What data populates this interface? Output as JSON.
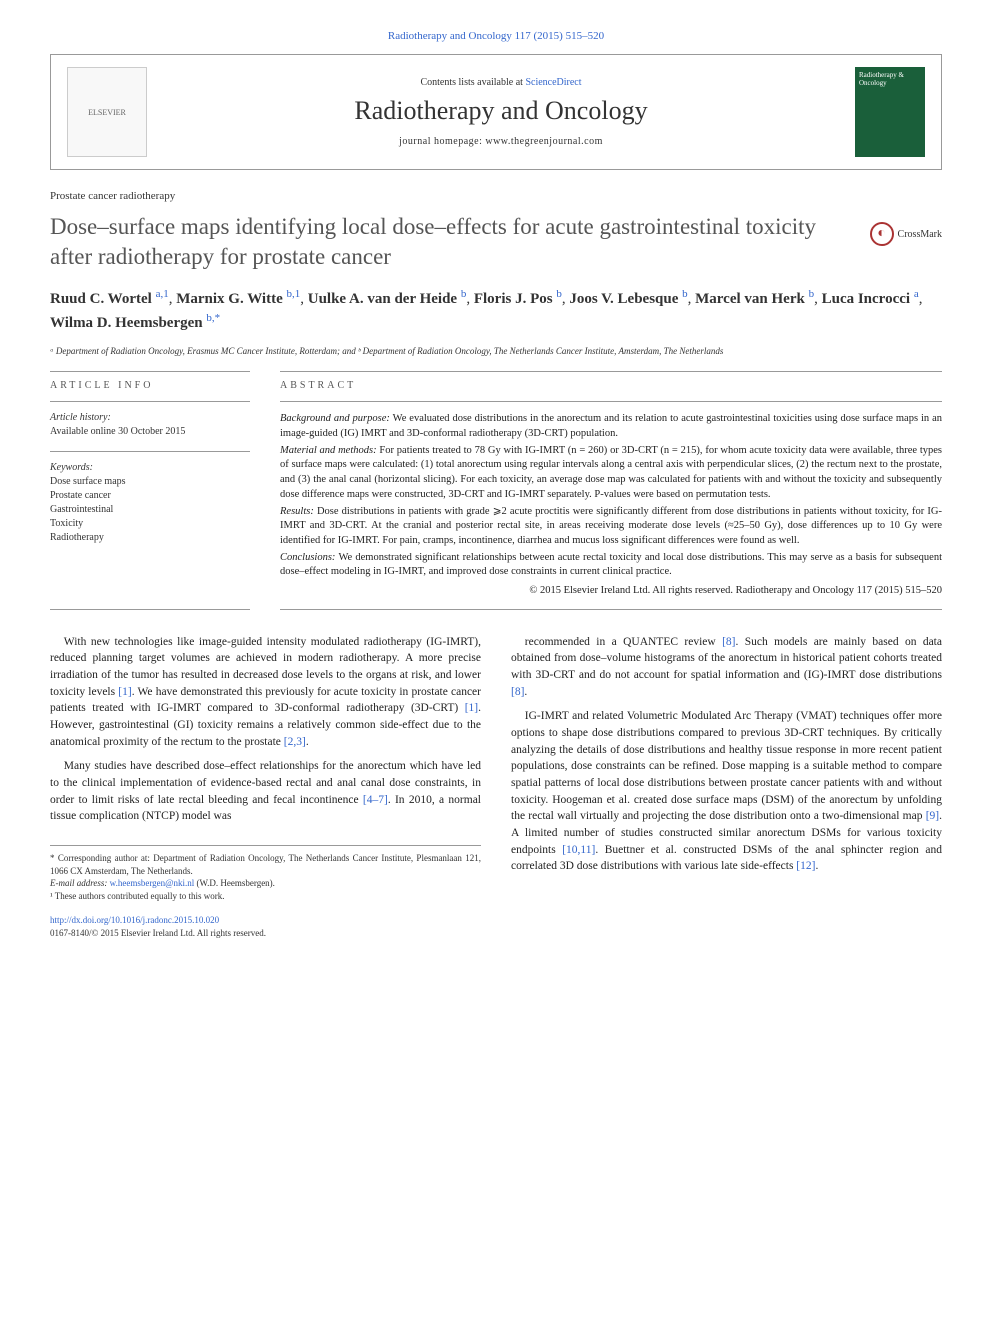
{
  "citation": "Radiotherapy and Oncology 117 (2015) 515–520",
  "journal_box": {
    "contents_prefix": "Contents lists available at ",
    "contents_link": "ScienceDirect",
    "journal_title": "Radiotherapy and Oncology",
    "homepage_prefix": "journal homepage: ",
    "homepage_url": "www.thegreenjournal.com",
    "publisher_mark": "ELSEVIER",
    "cover_text": "Radiotherapy & Oncology"
  },
  "article_type": "Prostate cancer radiotherapy",
  "title": "Dose–surface maps identifying local dose–effects for acute gastrointestinal toxicity after radiotherapy for prostate cancer",
  "crossmark": "CrossMark",
  "authors": [
    {
      "name": "Ruud C. Wortel",
      "aff": "a,1"
    },
    {
      "name": "Marnix G. Witte",
      "aff": "b,1"
    },
    {
      "name": "Uulke A. van der Heide",
      "aff": "b"
    },
    {
      "name": "Floris J. Pos",
      "aff": "b"
    },
    {
      "name": "Joos V. Lebesque",
      "aff": "b"
    },
    {
      "name": "Marcel van Herk",
      "aff": "b"
    },
    {
      "name": "Luca Incrocci",
      "aff": "a"
    },
    {
      "name": "Wilma D. Heemsbergen",
      "aff": "b,*"
    }
  ],
  "affiliations": "ᵃ Department of Radiation Oncology, Erasmus MC Cancer Institute, Rotterdam; and ᵇ Department of Radiation Oncology, The Netherlands Cancer Institute, Amsterdam, The Netherlands",
  "article_info": {
    "heading": "article info",
    "history_label": "Article history:",
    "history_text": "Available online 30 October 2015",
    "keywords_label": "Keywords:",
    "keywords": [
      "Dose surface maps",
      "Prostate cancer",
      "Gastrointestinal",
      "Toxicity",
      "Radiotherapy"
    ]
  },
  "abstract": {
    "heading": "abstract",
    "background_label": "Background and purpose:",
    "background": "We evaluated dose distributions in the anorectum and its relation to acute gastrointestinal toxicities using dose surface maps in an image-guided (IG) IMRT and 3D-conformal radiotherapy (3D-CRT) population.",
    "methods_label": "Material and methods:",
    "methods": "For patients treated to 78 Gy with IG-IMRT (n = 260) or 3D-CRT (n = 215), for whom acute toxicity data were available, three types of surface maps were calculated: (1) total anorectum using regular intervals along a central axis with perpendicular slices, (2) the rectum next to the prostate, and (3) the anal canal (horizontal slicing). For each toxicity, an average dose map was calculated for patients with and without the toxicity and subsequently dose difference maps were constructed, 3D-CRT and IG-IMRT separately. P-values were based on permutation tests.",
    "results_label": "Results:",
    "results": "Dose distributions in patients with grade ⩾2 acute proctitis were significantly different from dose distributions in patients without toxicity, for IG-IMRT and 3D-CRT. At the cranial and posterior rectal site, in areas receiving moderate dose levels (≈25–50 Gy), dose differences up to 10 Gy were identified for IG-IMRT. For pain, cramps, incontinence, diarrhea and mucus loss significant differences were found as well.",
    "conclusions_label": "Conclusions:",
    "conclusions": "We demonstrated significant relationships between acute rectal toxicity and local dose distributions. This may serve as a basis for subsequent dose–effect modeling in IG-IMRT, and improved dose constraints in current clinical practice.",
    "copyright": "© 2015 Elsevier Ireland Ltd. All rights reserved. Radiotherapy and Oncology 117 (2015) 515–520"
  },
  "body": {
    "left_p1": "With new technologies like image-guided intensity modulated radiotherapy (IG-IMRT), reduced planning target volumes are achieved in modern radiotherapy. A more precise irradiation of the tumor has resulted in decreased dose levels to the organs at risk, and lower toxicity levels [1]. We have demonstrated this previously for acute toxicity in prostate cancer patients treated with IG-IMRT compared to 3D-conformal radiotherapy (3D-CRT) [1]. However, gastrointestinal (GI) toxicity remains a relatively common side-effect due to the anatomical proximity of the rectum to the prostate [2,3].",
    "left_p2": "Many studies have described dose–effect relationships for the anorectum which have led to the clinical implementation of evidence-based rectal and anal canal dose constraints, in order to limit risks of late rectal bleeding and fecal incontinence [4–7]. In 2010, a normal tissue complication (NTCP) model was",
    "right_p1": "recommended in a QUANTEC review [8]. Such models are mainly based on data obtained from dose–volume histograms of the anorectum in historical patient cohorts treated with 3D-CRT and do not account for spatial information and (IG)-IMRT dose distributions [8].",
    "right_p2": "IG-IMRT and related Volumetric Modulated Arc Therapy (VMAT) techniques offer more options to shape dose distributions compared to previous 3D-CRT techniques. By critically analyzing the details of dose distributions and healthy tissue response in more recent patient populations, dose constraints can be refined. Dose mapping is a suitable method to compare spatial patterns of local dose distributions between prostate cancer patients with and without toxicity. Hoogeman et al. created dose surface maps (DSM) of the anorectum by unfolding the rectal wall virtually and projecting the dose distribution onto a two-dimensional map [9]. A limited number of studies constructed similar anorectum DSMs for various toxicity endpoints [10,11]. Buettner et al. constructed DSMs of the anal sphincter region and correlated 3D dose distributions with various late side-effects [12]."
  },
  "footnotes": {
    "corr": "* Corresponding author at: Department of Radiation Oncology, The Netherlands Cancer Institute, Plesmanlaan 121, 1066 CX Amsterdam, The Netherlands.",
    "email_label": "E-mail address:",
    "email": "w.heemsbergen@nki.nl",
    "email_who": "(W.D. Heemsbergen).",
    "equal": "¹ These authors contributed equally to this work."
  },
  "doi": {
    "url": "http://dx.doi.org/10.1016/j.radonc.2015.10.020",
    "issn_line": "0167-8140/© 2015 Elsevier Ireland Ltd. All rights reserved."
  },
  "colors": {
    "link": "#3366cc",
    "text": "#222222",
    "cover_bg": "#1a5f3a"
  }
}
